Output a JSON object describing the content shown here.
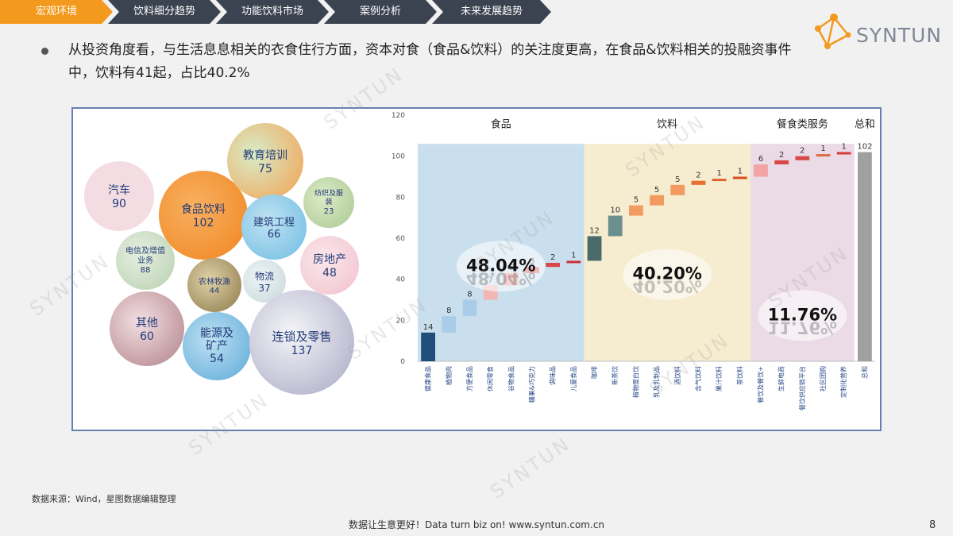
{
  "nav": {
    "items": [
      {
        "label": "宏观环境",
        "active": true
      },
      {
        "label": "饮料细分趋势",
        "active": false
      },
      {
        "label": "功能饮料市场",
        "active": false
      },
      {
        "label": "案例分析",
        "active": false
      },
      {
        "label": "未来发展趋势",
        "active": false
      }
    ]
  },
  "logo": {
    "text": "SYNTUN"
  },
  "bullet": {
    "text": "从投资角度看，与生活息息相关的衣食住行方面，资本对食（食品&饮料）的关注度更高，在食品&饮料相关的投融资事件中，饮料有41起，占比40.2%"
  },
  "bubbles": [
    {
      "label": "汽车",
      "value": "90",
      "color": "#f3dde3"
    },
    {
      "label": "食品饮料",
      "value": "102",
      "color": "#f59a38"
    },
    {
      "label": "教育培训",
      "value": "75",
      "color": "#f3a860"
    },
    {
      "label": "纺织及服装",
      "value": "23",
      "color": "#bcd6a8"
    },
    {
      "label": "建筑工程",
      "value": "66",
      "color": "#8ccbea"
    },
    {
      "label": "电信及增值业务",
      "value": "88",
      "color": "#c9dcc0"
    },
    {
      "label": "房地产",
      "value": "48",
      "color": "#f6d3dc"
    },
    {
      "label": "农林牧渔",
      "value": "44",
      "color": "#a99360"
    },
    {
      "label": "物流",
      "value": "37",
      "color": "#d2e2e6"
    },
    {
      "label": "其他",
      "value": "60",
      "color": "#d4aeb2"
    },
    {
      "label": "能源及矿产",
      "value": "54",
      "color": "#7ebce0"
    },
    {
      "label": "连锁及零售",
      "value": "137",
      "color": "#bdbdd2"
    }
  ],
  "chart_data": {
    "type": "bar",
    "subtype": "waterfall",
    "ylim": [
      0,
      120
    ],
    "yticks": [
      0,
      20,
      40,
      60,
      80,
      100,
      120
    ],
    "groups": [
      {
        "name": "食品",
        "percent": "48.04%",
        "color": "#c9dfee"
      },
      {
        "name": "饮料",
        "percent": "40.20%",
        "color": "#f6ecd0"
      },
      {
        "name": "餐食类服务",
        "percent": "11.76%",
        "color": "#eadbe6"
      },
      {
        "name": "总和",
        "percent": "",
        "color": "#ffffff"
      }
    ],
    "categories": [
      "健康食品",
      "植物肉",
      "方便食品",
      "休闲零食",
      "谷物食品",
      "糖果&巧克力",
      "调味品",
      "儿童食品",
      "咖啡",
      "新茶饮",
      "植物蛋白饮",
      "乳及乳制品",
      "酒饮料",
      "含气饮料",
      "果汁饮料",
      "茶饮料",
      "餐饮及餐饮+",
      "生鲜电商",
      "餐饮供应链平台",
      "社区团购",
      "定制化营养",
      "总和"
    ],
    "values": [
      14,
      8,
      8,
      7,
      6,
      3,
      2,
      1,
      12,
      10,
      5,
      5,
      5,
      2,
      1,
      1,
      6,
      2,
      2,
      1,
      1,
      102
    ],
    "group_index": [
      0,
      0,
      0,
      0,
      0,
      0,
      0,
      0,
      1,
      1,
      1,
      1,
      1,
      1,
      1,
      1,
      2,
      2,
      2,
      2,
      2,
      3
    ],
    "colors": [
      "#1f4e79",
      "#a9cde9",
      "#a9cde9",
      "#f2b6b6",
      "#ee9999",
      "#e06060",
      "#d94848",
      "#c93030",
      "#4a6b6b",
      "#6b8f8f",
      "#f29a60",
      "#f29a60",
      "#f29a60",
      "#e87030",
      "#e06030",
      "#d85020",
      "#f3a3a3",
      "#d94848",
      "#d94848",
      "#e06a40",
      "#d83a3a",
      "#a0a0a0"
    ]
  },
  "source": "数据来源：Wind，星图数据编辑整理",
  "footer": "数据让生意更好！Data turn biz on!  www.syntun.com.cn",
  "page_number": "8",
  "watermark": "SYNTUN"
}
